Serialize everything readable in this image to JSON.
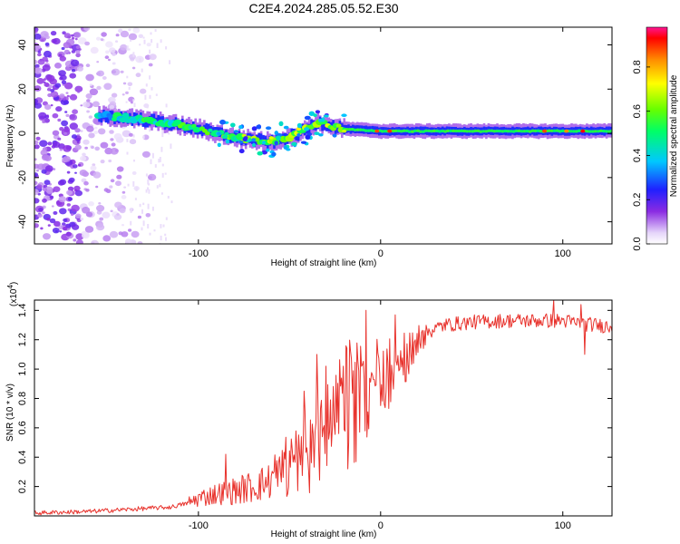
{
  "page_title": "C2E4.2024.285.05.52.E30",
  "chart_data": [
    {
      "type": "heatmap",
      "title": "C2E4.2024.285.05.52.E30",
      "xlabel": "Height of straight line (km)",
      "ylabel": "Frequency (Hz)",
      "xlim": [
        -190,
        127
      ],
      "ylim": [
        -50,
        48
      ],
      "x_ticks": [
        -100,
        0,
        100
      ],
      "y_ticks": [
        -40,
        -20,
        0,
        20,
        40
      ],
      "colorbar": {
        "label": "Normalized spectral amplitude",
        "range": [
          0.0,
          0.98
        ],
        "ticks": [
          0.0,
          0.2,
          0.4,
          0.6,
          0.8
        ],
        "tick_labels": [
          "0.0",
          "0.2",
          "0.4",
          "0.6",
          "0.8"
        ]
      },
      "signal_trace": {
        "x": [
          -155,
          -140,
          -120,
          -100,
          -80,
          -60,
          -45,
          -35,
          -20,
          0,
          20,
          60,
          100,
          127
        ],
        "freq": [
          8,
          7,
          5,
          2,
          -2,
          -4,
          0,
          5,
          2,
          1,
          1,
          1,
          1,
          1
        ],
        "peak_amplitude": [
          0.4,
          0.45,
          0.5,
          0.5,
          0.55,
          0.6,
          0.65,
          0.6,
          0.7,
          0.85,
          0.8,
          0.5,
          0.8,
          0.8
        ]
      },
      "noise_region_x": [
        -190,
        -125
      ]
    },
    {
      "type": "line",
      "xlabel": "Height of straight line (km)",
      "ylabel": "SNR (10 * v/v)",
      "y_multiplier": "(x10",
      "y_multiplier_exp": "4",
      "xlim": [
        -190,
        127
      ],
      "ylim": [
        0,
        1.47
      ],
      "x_ticks": [
        -100,
        0,
        100
      ],
      "y_ticks": [
        0.2,
        0.4,
        0.6,
        0.8,
        1.0,
        1.2,
        1.4
      ],
      "y_tick_labels": [
        "0.2",
        "0.4",
        "0.6",
        "0.8",
        "1.0",
        "1.2",
        "1.4"
      ],
      "color": "#e8322c",
      "series": [
        {
          "x": [
            -190,
            -160,
            -130,
            -115,
            -105,
            -100,
            -90,
            -80,
            -70,
            -60,
            -50,
            -40,
            -30,
            -20,
            -10,
            0,
            10,
            20,
            25,
            35,
            50,
            70,
            90,
            100,
            110,
            127
          ],
          "values": [
            0.02,
            0.03,
            0.05,
            0.06,
            0.09,
            0.12,
            0.15,
            0.17,
            0.2,
            0.24,
            0.3,
            0.4,
            0.52,
            0.65,
            0.78,
            0.88,
            0.98,
            1.15,
            1.25,
            1.3,
            1.32,
            1.33,
            1.33,
            1.33,
            1.31,
            1.29
          ],
          "spike_peaks": [
            {
              "x": -85,
              "y": 0.42
            },
            {
              "x": -42,
              "y": 0.85
            },
            {
              "x": -35,
              "y": 1.1
            },
            {
              "x": -30,
              "y": 1.02
            },
            {
              "x": -8,
              "y": 1.4
            },
            {
              "x": 8,
              "y": 1.37
            },
            {
              "x": 95,
              "y": 1.48
            },
            {
              "x": 110,
              "y": 1.44
            },
            {
              "x": 112,
              "y": 1.1
            }
          ]
        }
      ]
    }
  ]
}
